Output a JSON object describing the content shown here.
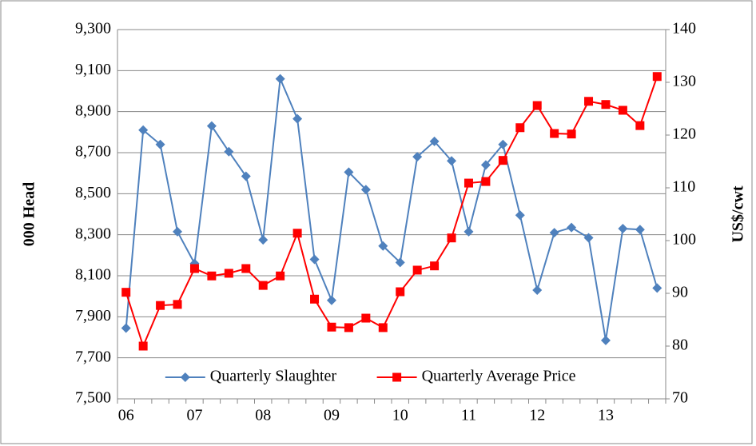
{
  "chart_data": {
    "type": "line",
    "y_label": "000 Head",
    "y2_label": "US$/cwt",
    "categories": [
      "06",
      null,
      null,
      null,
      "07",
      null,
      null,
      null,
      "08",
      null,
      null,
      null,
      "09",
      null,
      null,
      null,
      "10",
      null,
      null,
      null,
      "11",
      null,
      null,
      null,
      "12",
      null,
      null,
      null,
      "13",
      null,
      null,
      null
    ],
    "series": [
      {
        "name": "Quarterly Slaughter",
        "color": "#4f81bd",
        "marker": "diamond",
        "values": [
          7845,
          8810,
          8740,
          8315,
          8160,
          8830,
          8705,
          8585,
          8275,
          9060,
          8865,
          8180,
          7980,
          8605,
          8520,
          8245,
          8165,
          8680,
          8755,
          8660,
          8315,
          8640,
          8740,
          8395,
          8030,
          8310,
          8335,
          8285,
          7785,
          8330,
          8325,
          8040
        ]
      },
      {
        "name": "Quarterly Average Price",
        "color": "#ff0000",
        "marker": "square",
        "axis": "y2",
        "values": [
          90.2,
          80.0,
          87.7,
          87.9,
          94.7,
          93.3,
          93.8,
          94.7,
          91.5,
          93.3,
          101.4,
          88.9,
          83.6,
          83.5,
          85.3,
          83.5,
          90.3,
          94.4,
          95.2,
          100.5,
          110.9,
          111.2,
          115.2,
          121.4,
          125.6,
          120.3,
          120.2,
          126.4,
          125.8,
          124.7,
          121.8,
          131.1
        ]
      }
    ],
    "ylim": [
      7500,
      9300
    ],
    "yticks": [
      {
        "value": 7500,
        "label": "7,500"
      },
      {
        "value": 7700,
        "label": "7,700"
      },
      {
        "value": 7900,
        "label": "7,900"
      },
      {
        "value": 8100,
        "label": "8,100"
      },
      {
        "value": 8300,
        "label": "8,300"
      },
      {
        "value": 8500,
        "label": "8,500"
      },
      {
        "value": 8700,
        "label": "8,700"
      },
      {
        "value": 8900,
        "label": "8,900"
      },
      {
        "value": 9100,
        "label": "9,100"
      },
      {
        "value": 9300,
        "label": "9,300"
      }
    ],
    "y2lim": [
      70,
      140
    ],
    "y2ticks": [
      70,
      80,
      90,
      100,
      110,
      120,
      130,
      140
    ],
    "grid": true,
    "legend": "lower center"
  }
}
